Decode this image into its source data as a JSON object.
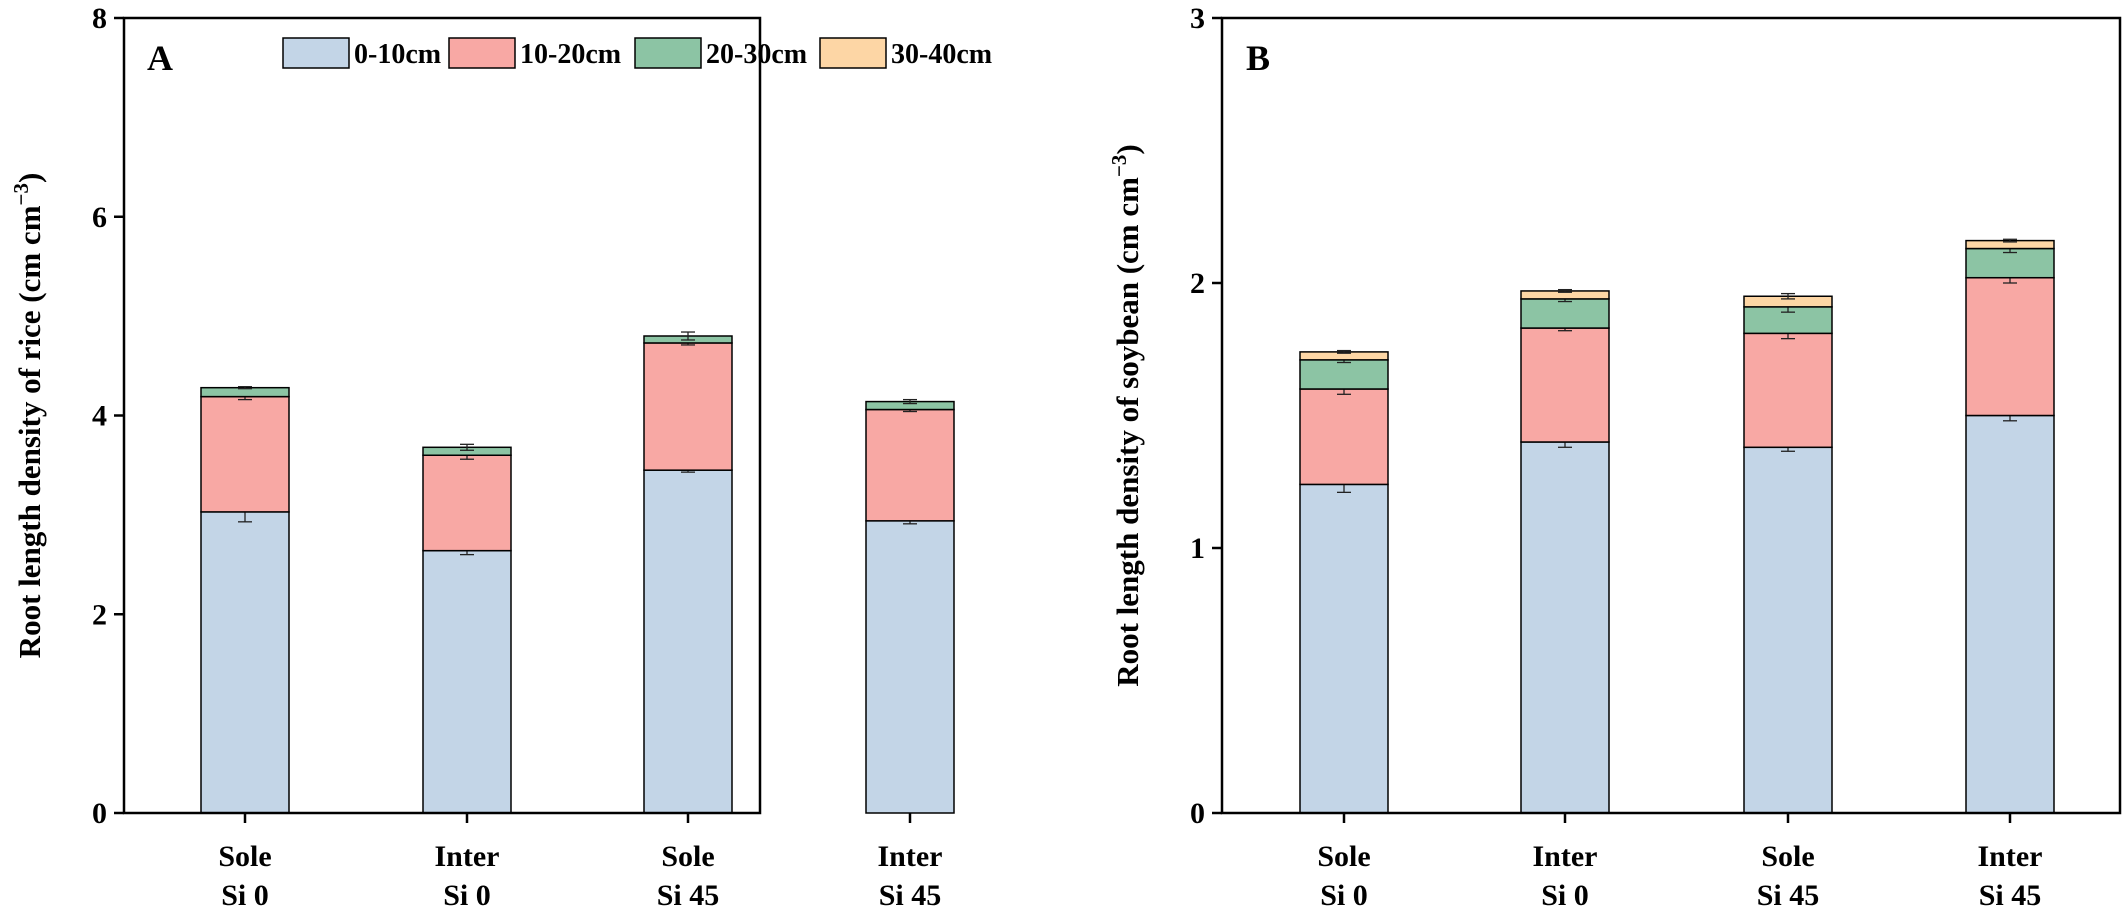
{
  "legend": {
    "entries": [
      {
        "label": "0-10cm",
        "color": "#c3d5e7"
      },
      {
        "label": "10-20cm",
        "color": "#f8a8a4"
      },
      {
        "label": "20-30cm",
        "color": "#8cc4a4"
      },
      {
        "label": "30-40cm",
        "color": "#fdd6a5"
      }
    ]
  },
  "chart_data": [
    {
      "panel": "A",
      "type": "bar",
      "stacked": true,
      "ylabel": "Root length density of rice (cm cm−3)",
      "ylabel_main": "Root length density of rice (cm cm",
      "ylabel_sup": "−3",
      "ylabel_close": ")",
      "ylim": [
        0,
        8
      ],
      "yticks": [
        0,
        2,
        4,
        6,
        8
      ],
      "categories": [
        [
          "Sole",
          "Si 0"
        ],
        [
          "Inter",
          "Si 0"
        ],
        [
          "Sole",
          "Si 45"
        ],
        [
          "Inter",
          "Si 45"
        ]
      ],
      "series": [
        {
          "name": "0-10cm",
          "values": [
            3.03,
            2.64,
            3.45,
            2.94
          ],
          "errors": [
            0.1,
            0.04,
            0.02,
            0.03
          ]
        },
        {
          "name": "10-20cm",
          "values": [
            1.16,
            0.96,
            1.28,
            1.12
          ],
          "errors": [
            0.03,
            0.04,
            0.02,
            0.02
          ]
        },
        {
          "name": "20-30cm",
          "values": [
            0.09,
            0.08,
            0.07,
            0.08
          ],
          "errors": [
            0.01,
            0.03,
            0.04,
            0.02
          ]
        },
        {
          "name": "30-40cm",
          "values": [
            0,
            0,
            0,
            0
          ],
          "errors": [
            0,
            0,
            0,
            0
          ]
        }
      ],
      "legend_position": "top-right"
    },
    {
      "panel": "B",
      "type": "bar",
      "stacked": true,
      "ylabel": "Root length density of soybean (cm cm−3)",
      "ylabel_main": "Root length density of soybean (cm cm",
      "ylabel_sup": "−3",
      "ylabel_close": ")",
      "ylim": [
        0,
        3
      ],
      "yticks": [
        0,
        1,
        2,
        3
      ],
      "categories": [
        [
          "Sole",
          "Si 0"
        ],
        [
          "Inter",
          "Si 0"
        ],
        [
          "Sole",
          "Si 45"
        ],
        [
          "Inter",
          "Si 45"
        ]
      ],
      "series": [
        {
          "name": "0-10cm",
          "values": [
            1.24,
            1.4,
            1.38,
            1.5
          ],
          "errors": [
            0.03,
            0.02,
            0.015,
            0.02
          ]
        },
        {
          "name": "10-20cm",
          "values": [
            0.36,
            0.43,
            0.43,
            0.52
          ],
          "errors": [
            0.02,
            0.01,
            0.02,
            0.02
          ]
        },
        {
          "name": "20-30cm",
          "values": [
            0.11,
            0.11,
            0.1,
            0.11
          ],
          "errors": [
            0.01,
            0.01,
            0.02,
            0.015
          ]
        },
        {
          "name": "30-40cm",
          "values": [
            0.03,
            0.03,
            0.04,
            0.03
          ],
          "errors": [
            0.005,
            0.005,
            0.01,
            0.005
          ]
        }
      ]
    }
  ]
}
